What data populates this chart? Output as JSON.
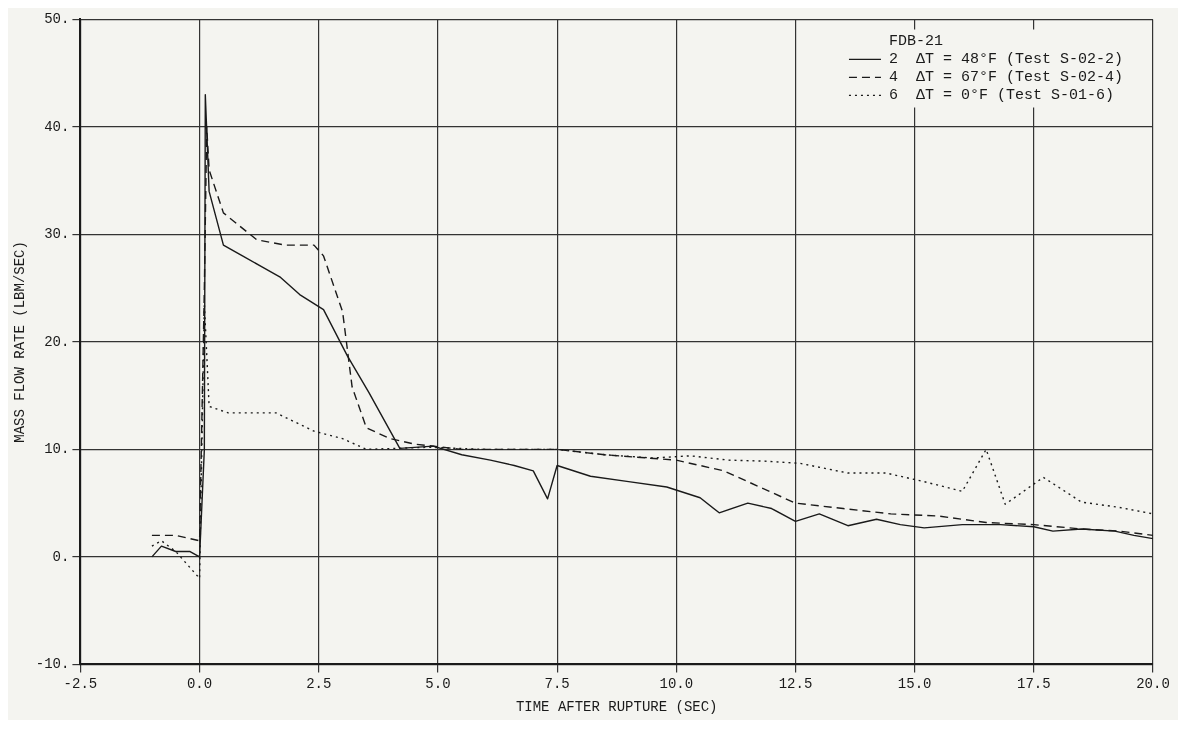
{
  "chart_data": {
    "type": "line",
    "xlabel": "TIME AFTER RUPTURE (SEC)",
    "ylabel": "MASS FLOW RATE (LBM/SEC)",
    "legend_title": "FDB-21",
    "legend": "top right",
    "grid": true,
    "marker": "none",
    "xlim": [
      -2.5,
      20
    ],
    "xticks": [
      {
        "value": -2.5,
        "label": "-2.5"
      },
      {
        "value": 0,
        "label": "0.0"
      },
      {
        "value": 2.5,
        "label": "2.5"
      },
      {
        "value": 5,
        "label": "5.0"
      },
      {
        "value": 7.5,
        "label": "7.5"
      },
      {
        "value": 10,
        "label": "10.0"
      },
      {
        "value": 12.5,
        "label": "12.5"
      },
      {
        "value": 15,
        "label": "15.0"
      },
      {
        "value": 17.5,
        "label": "17.5"
      },
      {
        "value": 20,
        "label": "20.0"
      }
    ],
    "ylim": [
      -10,
      50
    ],
    "yticks": [
      {
        "value": -10,
        "label": "-10."
      },
      {
        "value": 0,
        "label": "0."
      },
      {
        "value": 10,
        "label": "10."
      },
      {
        "value": 20,
        "label": "20."
      },
      {
        "value": 30,
        "label": "30."
      },
      {
        "value": 40,
        "label": "40."
      },
      {
        "value": 50,
        "label": "50."
      }
    ],
    "series": [
      {
        "name": "2  ΔT = 48°F (Test S-02-2)",
        "color": "#1a1a1a",
        "line_style": "solid",
        "x": [
          -1,
          -0.8,
          -0.5,
          -0.2,
          0,
          0.1,
          0.12,
          0.2,
          0.5,
          0.9,
          1.3,
          1.7,
          2.1,
          2.6,
          3.1,
          3.55,
          4.2,
          4.9,
          5.5,
          6.1,
          6.6,
          7.0,
          7.3,
          7.5,
          8.2,
          9.0,
          9.8,
          10.5,
          10.9,
          11.5,
          12.0,
          12.5,
          13.0,
          13.6,
          14.2,
          14.7,
          15.2,
          16.0,
          16.8,
          17.5,
          17.9,
          18.5,
          19.2,
          19.6,
          20
        ],
        "values": [
          0,
          1,
          0.5,
          0.5,
          0,
          10,
          43,
          34,
          29,
          28,
          27,
          26,
          24.4,
          23,
          18.7,
          15.3,
          10.1,
          10.3,
          9.5,
          9,
          8.5,
          8,
          5.4,
          8.5,
          7.5,
          7,
          6.5,
          5.5,
          4.1,
          5,
          4.5,
          3.3,
          4,
          2.9,
          3.5,
          3,
          2.7,
          3,
          3,
          2.8,
          2.4,
          2.6,
          2.4,
          2,
          1.7
        ]
      },
      {
        "name": "4  ΔT = 67°F (Test S-02-4)",
        "color": "#1a1a1a",
        "line_style": "dashed",
        "x": [
          -1,
          -0.5,
          0,
          0.1,
          0.15,
          0.2,
          0.5,
          1.2,
          1.8,
          2.4,
          2.6,
          3.0,
          3.2,
          3.5,
          4.0,
          4.5,
          5.5,
          6.5,
          7.5,
          8.5,
          10,
          11,
          11.5,
          12.5,
          13.5,
          14.5,
          15.5,
          16.5,
          17.5,
          18.5,
          19.3,
          20
        ],
        "values": [
          2,
          2,
          1.5,
          25,
          40,
          36,
          32,
          29.5,
          29,
          29,
          28,
          22.8,
          15.8,
          12,
          11,
          10.5,
          10,
          10,
          10,
          9.5,
          9,
          8,
          7,
          5,
          4.5,
          4,
          3.8,
          3.2,
          3,
          2.6,
          2.4,
          2
        ]
      },
      {
        "name": "6  ΔT = 0°F (Test S-01-6)",
        "color": "#1a1a1a",
        "line_style": "dotted",
        "x": [
          -1,
          -0.8,
          -0.5,
          -0.2,
          0,
          0.1,
          0.2,
          0.6,
          1.6,
          2.4,
          3.0,
          3.5,
          4.8,
          6,
          7.5,
          8.5,
          9.5,
          10.3,
          11.1,
          11.9,
          12.6,
          13.6,
          14.4,
          15.2,
          16,
          16.5,
          16.9,
          17.7,
          18.5,
          19.3,
          20
        ],
        "values": [
          1,
          1.5,
          0.5,
          -1,
          -2,
          23.6,
          14,
          13.4,
          13.4,
          11.7,
          11,
          10,
          10.2,
          10,
          10,
          9.5,
          9.2,
          9.4,
          9,
          8.9,
          8.7,
          7.8,
          7.8,
          7,
          6.1,
          10,
          4.9,
          7.4,
          5.1,
          4.6,
          4
        ]
      }
    ]
  }
}
